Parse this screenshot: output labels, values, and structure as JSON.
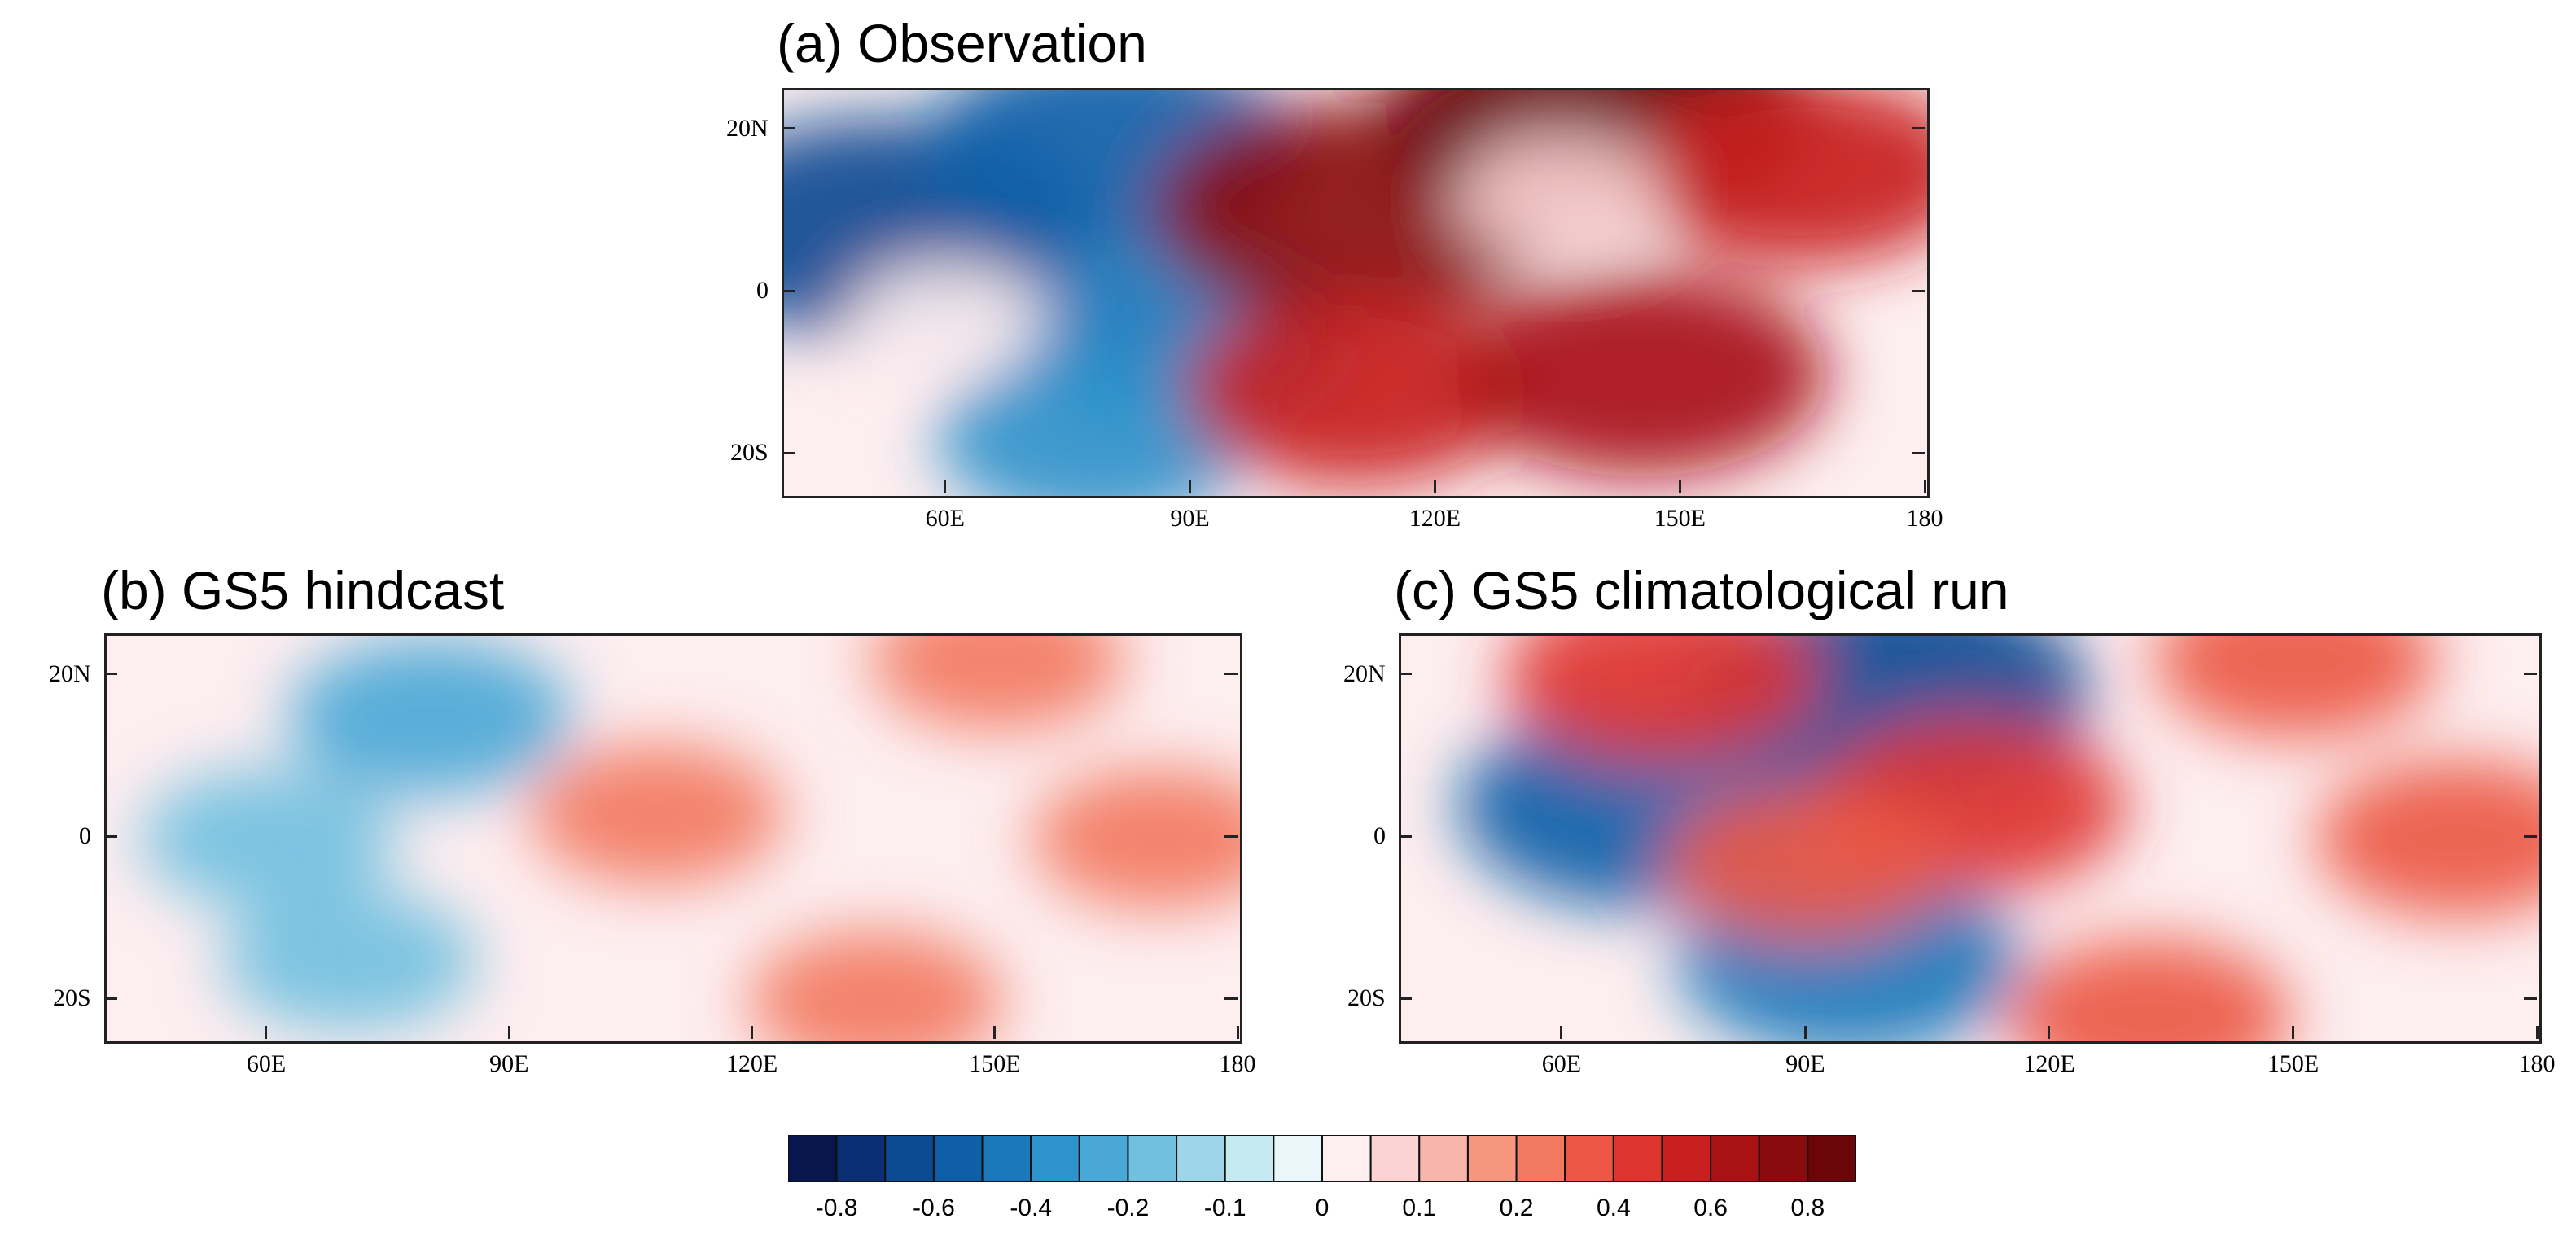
{
  "chart_data": [
    {
      "type": "heatmap",
      "panel": "a",
      "title": "(a) Observation",
      "x_ticks": [
        "60E",
        "90E",
        "120E",
        "150E",
        "180"
      ],
      "y_ticks": [
        "20N",
        "0",
        "20S"
      ],
      "xlim": [
        40,
        180
      ],
      "ylim": [
        -25,
        25
      ],
      "pattern": [
        {
          "lon": 52,
          "lat": 8,
          "value": -0.7
        },
        {
          "lon": 80,
          "lat": 18,
          "value": -0.6
        },
        {
          "lon": 88,
          "lat": -5,
          "value": -0.5
        },
        {
          "lon": 78,
          "lat": -18,
          "value": -0.4
        },
        {
          "lon": 110,
          "lat": 10,
          "value": 0.7
        },
        {
          "lon": 140,
          "lat": 22,
          "value": 0.8
        },
        {
          "lon": 110,
          "lat": -12,
          "value": 0.5
        },
        {
          "lon": 145,
          "lat": -10,
          "value": 0.6
        },
        {
          "lon": 165,
          "lat": 15,
          "value": 0.5
        },
        {
          "lon": 60,
          "lat": -3,
          "value": 0.0
        },
        {
          "lon": 135,
          "lat": 12,
          "value": 0.05
        }
      ]
    },
    {
      "type": "heatmap",
      "panel": "b",
      "title": "(b) GS5 hindcast",
      "x_ticks": [
        "60E",
        "90E",
        "120E",
        "150E",
        "180"
      ],
      "y_ticks": [
        "20N",
        "0",
        "20S"
      ],
      "xlim": [
        40,
        180
      ],
      "ylim": [
        -25,
        25
      ],
      "pattern": [
        {
          "lon": 80,
          "lat": 15,
          "value": -0.3
        },
        {
          "lon": 60,
          "lat": 0,
          "value": -0.2
        },
        {
          "lon": 70,
          "lat": -15,
          "value": -0.2
        },
        {
          "lon": 150,
          "lat": 22,
          "value": 0.2
        },
        {
          "lon": 108,
          "lat": 3,
          "value": 0.2
        },
        {
          "lon": 170,
          "lat": 0,
          "value": 0.2
        },
        {
          "lon": 135,
          "lat": -20,
          "value": 0.2
        }
      ]
    },
    {
      "type": "heatmap",
      "panel": "c",
      "title": "(c) GS5 climatological run",
      "x_ticks": [
        "60E",
        "90E",
        "120E",
        "150E",
        "180"
      ],
      "y_ticks": [
        "20N",
        "0",
        "20S"
      ],
      "xlim": [
        40,
        180
      ],
      "ylim": [
        -25,
        25
      ],
      "pattern": [
        {
          "lon": 100,
          "lat": 18,
          "value": -0.7
        },
        {
          "lon": 70,
          "lat": 4,
          "value": -0.6
        },
        {
          "lon": 95,
          "lat": -15,
          "value": -0.5
        },
        {
          "lon": 72,
          "lat": 20,
          "value": 0.4
        },
        {
          "lon": 110,
          "lat": 4,
          "value": 0.4
        },
        {
          "lon": 150,
          "lat": 22,
          "value": 0.3
        },
        {
          "lon": 170,
          "lat": 0,
          "value": 0.3
        },
        {
          "lon": 132,
          "lat": -22,
          "value": 0.3
        },
        {
          "lon": 90,
          "lat": -3,
          "value": 0.3
        }
      ]
    }
  ],
  "colorbar": {
    "levels": [
      -0.8,
      -0.7,
      -0.6,
      -0.5,
      -0.4,
      -0.3,
      -0.2,
      -0.15,
      -0.1,
      -0.05,
      0,
      0.05,
      0.1,
      0.15,
      0.2,
      0.3,
      0.4,
      0.5,
      0.6,
      0.7,
      0.8
    ],
    "colors": [
      "#08164e",
      "#0b2f73",
      "#0c4a92",
      "#0f5fa8",
      "#1a78bb",
      "#2f93cb",
      "#4aa8d6",
      "#72c0df",
      "#9dd6e8",
      "#c6eaf2",
      "#eaf7fa",
      "#fdeef0",
      "#fbd3d2",
      "#f8b6aa",
      "#f5977f",
      "#f27a61",
      "#ec5845",
      "#de3430",
      "#c8201f",
      "#a81214",
      "#8a0b0e",
      "#6b0507"
    ],
    "labels": [
      "-0.8",
      "-0.6",
      "-0.4",
      "-0.2",
      "-0.1",
      "0",
      "0.1",
      "0.2",
      "0.4",
      "0.6",
      "0.8"
    ]
  }
}
